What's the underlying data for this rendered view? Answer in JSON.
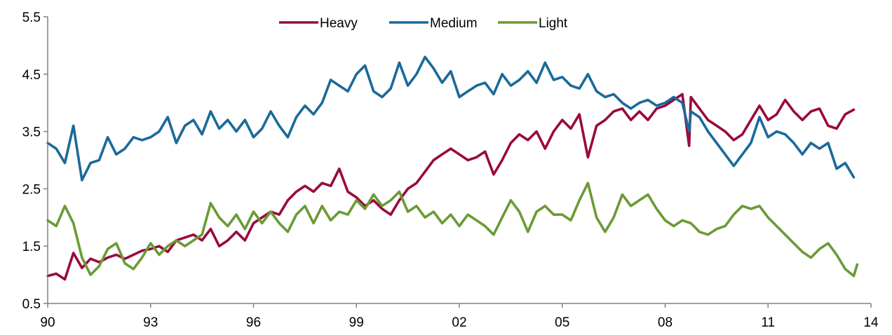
{
  "chart_data": {
    "type": "line",
    "title": "",
    "xlabel": "",
    "ylabel": "",
    "xlim": [
      1990,
      2014
    ],
    "ylim": [
      0.5,
      5.5
    ],
    "grid": false,
    "legend_position": "top-center",
    "x_ticks": [
      {
        "value": 1990,
        "label": "90"
      },
      {
        "value": 1993,
        "label": "93"
      },
      {
        "value": 1996,
        "label": "96"
      },
      {
        "value": 1999,
        "label": "99"
      },
      {
        "value": 2002,
        "label": "02"
      },
      {
        "value": 2005,
        "label": "05"
      },
      {
        "value": 2008,
        "label": "08"
      },
      {
        "value": 2011,
        "label": "11"
      },
      {
        "value": 2014,
        "label": "14"
      }
    ],
    "y_ticks": [
      {
        "value": 0.5,
        "label": "0.5"
      },
      {
        "value": 1.5,
        "label": "1.5"
      },
      {
        "value": 2.5,
        "label": "2.5"
      },
      {
        "value": 3.5,
        "label": "3.5"
      },
      {
        "value": 4.5,
        "label": "4.5"
      },
      {
        "value": 5.5,
        "label": "5.5"
      }
    ],
    "series": [
      {
        "name": "Heavy",
        "color": "#9A0A3E",
        "points": [
          [
            1990.0,
            0.98
          ],
          [
            1990.25,
            1.02
          ],
          [
            1990.5,
            0.92
          ],
          [
            1990.75,
            1.38
          ],
          [
            1991.0,
            1.12
          ],
          [
            1991.25,
            1.28
          ],
          [
            1991.5,
            1.22
          ],
          [
            1991.75,
            1.3
          ],
          [
            1992.0,
            1.35
          ],
          [
            1992.25,
            1.28
          ],
          [
            1992.5,
            1.35
          ],
          [
            1992.75,
            1.42
          ],
          [
            1993.0,
            1.45
          ],
          [
            1993.25,
            1.5
          ],
          [
            1993.5,
            1.4
          ],
          [
            1993.75,
            1.6
          ],
          [
            1994.0,
            1.65
          ],
          [
            1994.25,
            1.7
          ],
          [
            1994.5,
            1.6
          ],
          [
            1994.75,
            1.8
          ],
          [
            1995.0,
            1.5
          ],
          [
            1995.25,
            1.6
          ],
          [
            1995.5,
            1.75
          ],
          [
            1995.75,
            1.6
          ],
          [
            1996.0,
            1.9
          ],
          [
            1996.25,
            2.0
          ],
          [
            1996.5,
            2.1
          ],
          [
            1996.75,
            2.05
          ],
          [
            1997.0,
            2.3
          ],
          [
            1997.25,
            2.45
          ],
          [
            1997.5,
            2.55
          ],
          [
            1997.75,
            2.45
          ],
          [
            1998.0,
            2.6
          ],
          [
            1998.25,
            2.55
          ],
          [
            1998.5,
            2.85
          ],
          [
            1998.75,
            2.45
          ],
          [
            1999.0,
            2.35
          ],
          [
            1999.25,
            2.2
          ],
          [
            1999.5,
            2.3
          ],
          [
            1999.75,
            2.15
          ],
          [
            2000.0,
            2.05
          ],
          [
            2000.25,
            2.3
          ],
          [
            2000.5,
            2.5
          ],
          [
            2000.75,
            2.6
          ],
          [
            2001.0,
            2.8
          ],
          [
            2001.25,
            3.0
          ],
          [
            2001.5,
            3.1
          ],
          [
            2001.75,
            3.2
          ],
          [
            2002.0,
            3.1
          ],
          [
            2002.25,
            3.0
          ],
          [
            2002.5,
            3.05
          ],
          [
            2002.75,
            3.15
          ],
          [
            2003.0,
            2.75
          ],
          [
            2003.25,
            3.0
          ],
          [
            2003.5,
            3.3
          ],
          [
            2003.75,
            3.45
          ],
          [
            2004.0,
            3.35
          ],
          [
            2004.25,
            3.5
          ],
          [
            2004.5,
            3.2
          ],
          [
            2004.75,
            3.5
          ],
          [
            2005.0,
            3.7
          ],
          [
            2005.25,
            3.55
          ],
          [
            2005.5,
            3.8
          ],
          [
            2005.75,
            3.05
          ],
          [
            2006.0,
            3.6
          ],
          [
            2006.25,
            3.7
          ],
          [
            2006.5,
            3.85
          ],
          [
            2006.75,
            3.9
          ],
          [
            2007.0,
            3.7
          ],
          [
            2007.25,
            3.85
          ],
          [
            2007.5,
            3.7
          ],
          [
            2007.75,
            3.9
          ],
          [
            2008.0,
            3.95
          ],
          [
            2008.25,
            4.05
          ],
          [
            2008.5,
            4.15
          ],
          [
            2008.7,
            3.25
          ],
          [
            2008.75,
            4.1
          ],
          [
            2009.0,
            3.9
          ],
          [
            2009.25,
            3.7
          ],
          [
            2009.5,
            3.6
          ],
          [
            2009.75,
            3.5
          ],
          [
            2010.0,
            3.35
          ],
          [
            2010.25,
            3.45
          ],
          [
            2010.5,
            3.7
          ],
          [
            2010.75,
            3.95
          ],
          [
            2011.0,
            3.7
          ],
          [
            2011.25,
            3.8
          ],
          [
            2011.5,
            4.05
          ],
          [
            2011.75,
            3.85
          ],
          [
            2012.0,
            3.7
          ],
          [
            2012.25,
            3.85
          ],
          [
            2012.5,
            3.9
          ],
          [
            2012.75,
            3.6
          ],
          [
            2013.0,
            3.55
          ],
          [
            2013.25,
            3.8
          ],
          [
            2013.5,
            3.88
          ]
        ]
      },
      {
        "name": "Medium",
        "color": "#1A6A9A",
        "points": [
          [
            1990.0,
            3.3
          ],
          [
            1990.25,
            3.2
          ],
          [
            1990.5,
            2.95
          ],
          [
            1990.75,
            3.6
          ],
          [
            1991.0,
            2.65
          ],
          [
            1991.25,
            2.95
          ],
          [
            1991.5,
            3.0
          ],
          [
            1991.75,
            3.4
          ],
          [
            1992.0,
            3.1
          ],
          [
            1992.25,
            3.2
          ],
          [
            1992.5,
            3.4
          ],
          [
            1992.75,
            3.35
          ],
          [
            1993.0,
            3.4
          ],
          [
            1993.25,
            3.5
          ],
          [
            1993.5,
            3.75
          ],
          [
            1993.75,
            3.3
          ],
          [
            1994.0,
            3.6
          ],
          [
            1994.25,
            3.7
          ],
          [
            1994.5,
            3.45
          ],
          [
            1994.75,
            3.85
          ],
          [
            1995.0,
            3.55
          ],
          [
            1995.25,
            3.7
          ],
          [
            1995.5,
            3.5
          ],
          [
            1995.75,
            3.7
          ],
          [
            1996.0,
            3.4
          ],
          [
            1996.25,
            3.55
          ],
          [
            1996.5,
            3.85
          ],
          [
            1996.75,
            3.6
          ],
          [
            1997.0,
            3.4
          ],
          [
            1997.25,
            3.75
          ],
          [
            1997.5,
            3.95
          ],
          [
            1997.75,
            3.8
          ],
          [
            1998.0,
            4.0
          ],
          [
            1998.25,
            4.4
          ],
          [
            1998.5,
            4.3
          ],
          [
            1998.75,
            4.2
          ],
          [
            1999.0,
            4.5
          ],
          [
            1999.25,
            4.65
          ],
          [
            1999.5,
            4.2
          ],
          [
            1999.75,
            4.1
          ],
          [
            2000.0,
            4.25
          ],
          [
            2000.25,
            4.7
          ],
          [
            2000.5,
            4.3
          ],
          [
            2000.75,
            4.5
          ],
          [
            2001.0,
            4.8
          ],
          [
            2001.25,
            4.6
          ],
          [
            2001.5,
            4.35
          ],
          [
            2001.75,
            4.55
          ],
          [
            2002.0,
            4.1
          ],
          [
            2002.25,
            4.2
          ],
          [
            2002.5,
            4.3
          ],
          [
            2002.75,
            4.35
          ],
          [
            2003.0,
            4.15
          ],
          [
            2003.25,
            4.5
          ],
          [
            2003.5,
            4.3
          ],
          [
            2003.75,
            4.4
          ],
          [
            2004.0,
            4.55
          ],
          [
            2004.25,
            4.35
          ],
          [
            2004.5,
            4.7
          ],
          [
            2004.75,
            4.4
          ],
          [
            2005.0,
            4.45
          ],
          [
            2005.25,
            4.3
          ],
          [
            2005.5,
            4.25
          ],
          [
            2005.75,
            4.5
          ],
          [
            2006.0,
            4.2
          ],
          [
            2006.25,
            4.1
          ],
          [
            2006.5,
            4.15
          ],
          [
            2006.75,
            4.0
          ],
          [
            2007.0,
            3.9
          ],
          [
            2007.25,
            4.0
          ],
          [
            2007.5,
            4.05
          ],
          [
            2007.75,
            3.95
          ],
          [
            2008.0,
            4.0
          ],
          [
            2008.25,
            4.1
          ],
          [
            2008.5,
            4.0
          ],
          [
            2008.7,
            3.5
          ],
          [
            2008.75,
            3.85
          ],
          [
            2009.0,
            3.75
          ],
          [
            2009.25,
            3.5
          ],
          [
            2009.5,
            3.3
          ],
          [
            2009.75,
            3.1
          ],
          [
            2010.0,
            2.9
          ],
          [
            2010.25,
            3.1
          ],
          [
            2010.5,
            3.3
          ],
          [
            2010.75,
            3.75
          ],
          [
            2011.0,
            3.4
          ],
          [
            2011.25,
            3.5
          ],
          [
            2011.5,
            3.45
          ],
          [
            2011.75,
            3.3
          ],
          [
            2012.0,
            3.1
          ],
          [
            2012.25,
            3.3
          ],
          [
            2012.5,
            3.2
          ],
          [
            2012.75,
            3.3
          ],
          [
            2013.0,
            2.85
          ],
          [
            2013.25,
            2.95
          ],
          [
            2013.5,
            2.7
          ]
        ]
      },
      {
        "name": "Light",
        "color": "#6B9A35",
        "points": [
          [
            1990.0,
            1.95
          ],
          [
            1990.25,
            1.85
          ],
          [
            1990.5,
            2.2
          ],
          [
            1990.75,
            1.9
          ],
          [
            1991.0,
            1.3
          ],
          [
            1991.25,
            1.0
          ],
          [
            1991.5,
            1.15
          ],
          [
            1991.75,
            1.45
          ],
          [
            1992.0,
            1.55
          ],
          [
            1992.25,
            1.2
          ],
          [
            1992.5,
            1.1
          ],
          [
            1992.75,
            1.3
          ],
          [
            1993.0,
            1.55
          ],
          [
            1993.25,
            1.35
          ],
          [
            1993.5,
            1.5
          ],
          [
            1993.75,
            1.6
          ],
          [
            1994.0,
            1.5
          ],
          [
            1994.25,
            1.6
          ],
          [
            1994.5,
            1.7
          ],
          [
            1994.75,
            2.25
          ],
          [
            1995.0,
            2.0
          ],
          [
            1995.25,
            1.85
          ],
          [
            1995.5,
            2.05
          ],
          [
            1995.75,
            1.8
          ],
          [
            1996.0,
            2.1
          ],
          [
            1996.25,
            1.9
          ],
          [
            1996.5,
            2.1
          ],
          [
            1996.75,
            1.9
          ],
          [
            1997.0,
            1.75
          ],
          [
            1997.25,
            2.05
          ],
          [
            1997.5,
            2.2
          ],
          [
            1997.75,
            1.9
          ],
          [
            1998.0,
            2.2
          ],
          [
            1998.25,
            1.95
          ],
          [
            1998.5,
            2.1
          ],
          [
            1998.75,
            2.05
          ],
          [
            1999.0,
            2.3
          ],
          [
            1999.25,
            2.15
          ],
          [
            1999.5,
            2.4
          ],
          [
            1999.75,
            2.2
          ],
          [
            2000.0,
            2.3
          ],
          [
            2000.25,
            2.45
          ],
          [
            2000.5,
            2.1
          ],
          [
            2000.75,
            2.2
          ],
          [
            2001.0,
            2.0
          ],
          [
            2001.25,
            2.1
          ],
          [
            2001.5,
            1.9
          ],
          [
            2001.75,
            2.05
          ],
          [
            2002.0,
            1.85
          ],
          [
            2002.25,
            2.05
          ],
          [
            2002.5,
            1.95
          ],
          [
            2002.75,
            1.85
          ],
          [
            2003.0,
            1.7
          ],
          [
            2003.25,
            2.0
          ],
          [
            2003.5,
            2.3
          ],
          [
            2003.75,
            2.1
          ],
          [
            2004.0,
            1.75
          ],
          [
            2004.25,
            2.1
          ],
          [
            2004.5,
            2.2
          ],
          [
            2004.75,
            2.05
          ],
          [
            2005.0,
            2.05
          ],
          [
            2005.25,
            1.95
          ],
          [
            2005.5,
            2.3
          ],
          [
            2005.75,
            2.6
          ],
          [
            2006.0,
            2.0
          ],
          [
            2006.25,
            1.75
          ],
          [
            2006.5,
            2.0
          ],
          [
            2006.75,
            2.4
          ],
          [
            2007.0,
            2.2
          ],
          [
            2007.25,
            2.3
          ],
          [
            2007.5,
            2.4
          ],
          [
            2007.75,
            2.15
          ],
          [
            2008.0,
            1.95
          ],
          [
            2008.25,
            1.85
          ],
          [
            2008.5,
            1.95
          ],
          [
            2008.75,
            1.9
          ],
          [
            2009.0,
            1.75
          ],
          [
            2009.25,
            1.7
          ],
          [
            2009.5,
            1.8
          ],
          [
            2009.75,
            1.85
          ],
          [
            2010.0,
            2.05
          ],
          [
            2010.25,
            2.2
          ],
          [
            2010.5,
            2.15
          ],
          [
            2010.75,
            2.2
          ],
          [
            2011.0,
            2.0
          ],
          [
            2011.25,
            1.85
          ],
          [
            2011.5,
            1.7
          ],
          [
            2011.75,
            1.55
          ],
          [
            2012.0,
            1.4
          ],
          [
            2012.25,
            1.3
          ],
          [
            2012.5,
            1.45
          ],
          [
            2012.75,
            1.55
          ],
          [
            2013.0,
            1.35
          ],
          [
            2013.25,
            1.1
          ],
          [
            2013.5,
            0.98
          ],
          [
            2013.6,
            1.18
          ]
        ]
      }
    ]
  }
}
